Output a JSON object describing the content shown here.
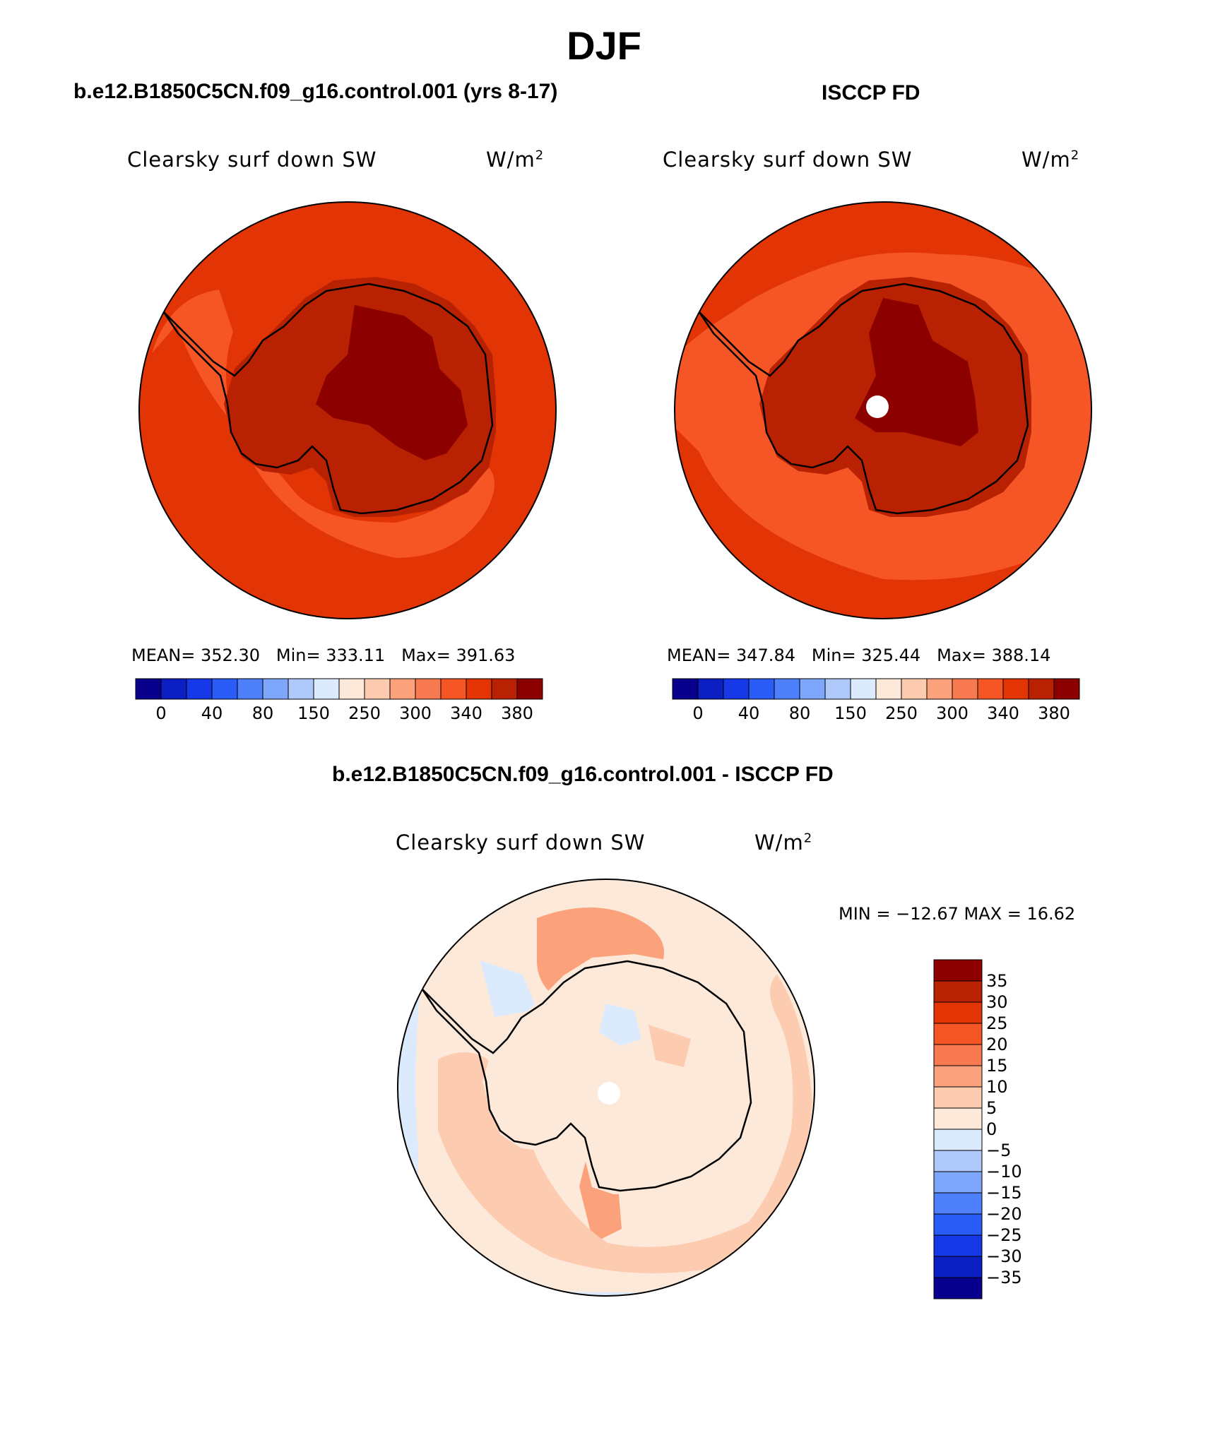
{
  "page_title": "DJF",
  "panels": [
    {
      "case_title": "b.e12.B1850C5CN.f09_g16.control.001 (yrs 8-17)",
      "field": "Clearsky surf down SW",
      "units_base": "W/m",
      "units_sup": "2",
      "mean_label": "MEAN=",
      "mean": "352.30",
      "min_label": "Min=",
      "min": "333.11",
      "max_label": "Max=",
      "max": "391.63"
    },
    {
      "case_title": "ISCCP FD",
      "field": "Clearsky surf down SW",
      "units_base": "W/m",
      "units_sup": "2",
      "mean_label": "MEAN=",
      "mean": "347.84",
      "min_label": "Min=",
      "min": "325.44",
      "max_label": "Max=",
      "max": "388.14"
    }
  ],
  "diff_panel": {
    "case_title": "b.e12.B1850C5CN.f09_g16.control.001 - ISCCP FD",
    "field": "Clearsky surf down SW",
    "units_base": "W/m",
    "units_sup": "2",
    "minmax_text": "MIN = −12.67  MAX =   16.62"
  },
  "abs_colorbar": {
    "colors": [
      "#08008c",
      "#0c1fc2",
      "#1638e6",
      "#2a5cf7",
      "#4d80fa",
      "#7ea6fb",
      "#b0c9fb",
      "#dceafd",
      "#fde9d9",
      "#fccbb0",
      "#fba17c",
      "#f97a50",
      "#f65526",
      "#e23405",
      "#b82203",
      "#8c0000"
    ],
    "tick_labels": [
      "0",
      "40",
      "80",
      "150",
      "250",
      "300",
      "340",
      "380"
    ]
  },
  "diff_colorbar": {
    "colors_top_to_bottom": [
      "#8c0000",
      "#b82203",
      "#e23405",
      "#f65526",
      "#f97a50",
      "#fba17c",
      "#fccbb0",
      "#fde9d9",
      "#dceafd",
      "#b0c9fb",
      "#7ea6fb",
      "#4d80fa",
      "#2a5cf7",
      "#1638e6",
      "#0c1fc2",
      "#08008c"
    ],
    "tick_labels": [
      "35",
      "30",
      "25",
      "20",
      "15",
      "10",
      "5",
      "0",
      "−5",
      "−10",
      "−15",
      "−20",
      "−25",
      "−30",
      "−35"
    ]
  }
}
